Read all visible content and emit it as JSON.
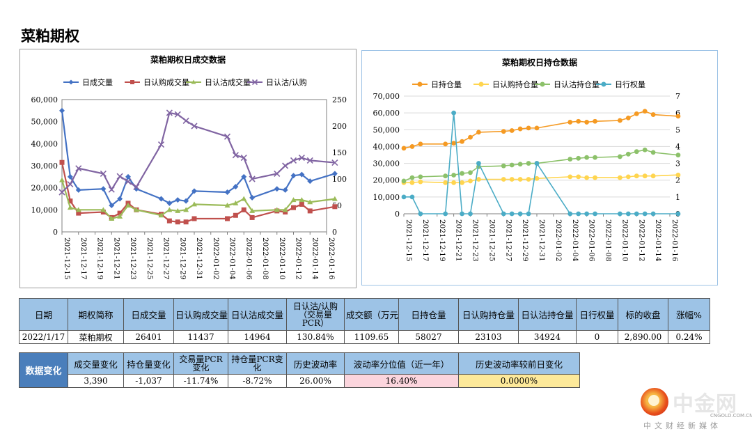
{
  "page": {
    "title": "菜粕期权"
  },
  "chart_data": [
    {
      "type": "line",
      "title": "菜粕期权日成交数据",
      "x": [
        "2021-12-15",
        "2021-12-16",
        "2021-12-17",
        "2021-12-20",
        "2021-12-21",
        "2021-12-22",
        "2021-12-23",
        "2021-12-24",
        "2021-12-27",
        "2021-12-28",
        "2021-12-29",
        "2021-12-30",
        "2021-12-31",
        "2022-01-04",
        "2022-01-05",
        "2022-01-06",
        "2022-01-07",
        "2022-01-10",
        "2022-01-11",
        "2022-01-12",
        "2022-01-13",
        "2022-01-14",
        "2022-01-17"
      ],
      "x_ticks": [
        "2021-12-15",
        "2021-12-17",
        "2021-12-19",
        "2021-12-21",
        "2021-12-23",
        "2021-12-25",
        "2021-12-27",
        "2021-12-29",
        "2021-12-31",
        "2022-01-02",
        "2022-01-04",
        "2022-01-06",
        "2022-01-08",
        "2022-01-10",
        "2022-01-12",
        "2022-01-14",
        "2022-01-16"
      ],
      "y_left": {
        "range": [
          0,
          60000
        ],
        "ticks": [
          "0",
          "10,000",
          "20,000",
          "30,000",
          "40,000",
          "50,000",
          "60,000"
        ]
      },
      "y_right": {
        "range": [
          0,
          250
        ],
        "ticks": [
          "0",
          "50",
          "100",
          "150",
          "200",
          "250"
        ]
      },
      "legend_position": "top",
      "series": [
        {
          "name": "日成交量",
          "axis": "left",
          "color": "#4472c4",
          "marker": "diamond",
          "values": [
            55000,
            25000,
            19000,
            19500,
            12000,
            15000,
            25000,
            19500,
            15000,
            13000,
            14500,
            14000,
            18500,
            18000,
            20500,
            25000,
            15500,
            19500,
            19000,
            25500,
            26000,
            23000,
            26401
          ]
        },
        {
          "name": "日认购成交量",
          "axis": "left",
          "color": "#c0504d",
          "marker": "square",
          "values": [
            31500,
            14000,
            8500,
            9000,
            6500,
            8500,
            13000,
            10000,
            8000,
            5000,
            4500,
            4500,
            6000,
            6000,
            7500,
            10000,
            6500,
            9500,
            9000,
            11000,
            12500,
            9500,
            11437
          ]
        },
        {
          "name": "日认沽成交量",
          "axis": "left",
          "color": "#9bbb59",
          "marker": "triangle",
          "values": [
            23500,
            11000,
            10000,
            10000,
            6000,
            7000,
            12000,
            10000,
            7500,
            10000,
            9500,
            10000,
            12500,
            12000,
            13000,
            15000,
            9500,
            10000,
            10000,
            14500,
            14500,
            13500,
            14964
          ]
        },
        {
          "name": "日认沽/认购",
          "axis": "right",
          "color": "#8064a2",
          "marker": "x",
          "values": [
            75,
            90,
            120,
            110,
            80,
            105,
            95,
            85,
            165,
            225,
            222,
            210,
            200,
            180,
            145,
            140,
            100,
            110,
            125,
            135,
            140,
            135,
            130.84
          ]
        }
      ]
    },
    {
      "type": "line",
      "title": "菜粕期权日持仓数据",
      "x": [
        "2021-12-15",
        "2021-12-16",
        "2021-12-17",
        "2021-12-20",
        "2021-12-21",
        "2021-12-22",
        "2021-12-23",
        "2021-12-24",
        "2021-12-27",
        "2021-12-28",
        "2021-12-29",
        "2021-12-30",
        "2021-12-31",
        "2022-01-04",
        "2022-01-05",
        "2022-01-06",
        "2022-01-07",
        "2022-01-10",
        "2022-01-11",
        "2022-01-12",
        "2022-01-13",
        "2022-01-14",
        "2022-01-17"
      ],
      "x_ticks": [
        "2021-12-15",
        "2021-12-17",
        "2021-12-19",
        "2021-12-21",
        "2021-12-23",
        "2021-12-25",
        "2021-12-27",
        "2021-12-29",
        "2021-12-31",
        "2022-01-02",
        "2022-01-04",
        "2022-01-06",
        "2022-01-08",
        "2022-01-10",
        "2022-01-12",
        "2022-01-14",
        "2022-01-16"
      ],
      "y_left": {
        "range": [
          0,
          70000
        ],
        "ticks": [
          "0",
          "10,000",
          "20,000",
          "30,000",
          "40,000",
          "50,000",
          "60,000",
          "70,000"
        ]
      },
      "y_right": {
        "range": [
          0,
          7
        ],
        "ticks": [
          "0",
          "1",
          "2",
          "3",
          "4",
          "5",
          "6",
          "7"
        ]
      },
      "legend_position": "top",
      "series": [
        {
          "name": "日持仓量",
          "axis": "left",
          "color": "#f59a23",
          "marker": "circle",
          "values": [
            39000,
            40000,
            41500,
            41500,
            42000,
            43000,
            45500,
            48500,
            49000,
            49500,
            50500,
            51000,
            51000,
            54500,
            55000,
            54500,
            55000,
            55500,
            57000,
            59500,
            61000,
            59000,
            58027
          ]
        },
        {
          "name": "日认购持仓量",
          "axis": "left",
          "color": "#ffd54f",
          "marker": "circle",
          "values": [
            18500,
            18500,
            19000,
            18500,
            18500,
            18500,
            19500,
            20500,
            20500,
            20500,
            20500,
            20500,
            21000,
            22000,
            22000,
            21500,
            21500,
            21500,
            22000,
            22500,
            22500,
            22500,
            23103
          ]
        },
        {
          "name": "日认沽持仓量",
          "axis": "left",
          "color": "#8cc16a",
          "marker": "circle",
          "values": [
            19500,
            21500,
            22000,
            22500,
            23000,
            24000,
            24500,
            28000,
            28500,
            29000,
            29500,
            30000,
            30000,
            32500,
            33000,
            33500,
            33500,
            34000,
            35500,
            37000,
            38000,
            36500,
            34924
          ]
        },
        {
          "name": "日行权量",
          "axis": "right",
          "color": "#4bacc6",
          "marker": "circle",
          "values": [
            1,
            1,
            0,
            0,
            6,
            0,
            0,
            3,
            0,
            0,
            0,
            0,
            3,
            0,
            0,
            0,
            0,
            0,
            0,
            0,
            0,
            0,
            0
          ]
        }
      ]
    }
  ],
  "table1": {
    "headers": [
      "日期",
      "期权简称",
      "日成交量",
      "日认购成交量",
      "日认沽成交量",
      "日认沽/认购（交易量PCR）",
      "成交额（万元）",
      "日持仓量",
      "日认购持仓量",
      "日认沽持仓量",
      "日行权量",
      "标的收盘",
      "涨幅%"
    ],
    "row": [
      "2022/1/17",
      "菜粕期权",
      "26401",
      "11437",
      "14964",
      "130.84%",
      "1109.65",
      "58027",
      "23103",
      "34924",
      "0",
      "2,890.00",
      "0.24%"
    ]
  },
  "table2": {
    "label": "数据变化",
    "headers": [
      "成交量变化",
      "持仓量变化",
      "交易量PCR变化",
      "持仓量PCR变化",
      "历史波动率",
      "波动率分位值（近一年）",
      "历史波动率较前日变化"
    ],
    "row": [
      "3,390",
      "-1,037",
      "-11.74%",
      "-8.72%",
      "26.00%",
      "16.40%",
      "0.0000%"
    ]
  },
  "logo": {
    "name": "中金网",
    "domain": "CNGOLD.COM.CN",
    "slogan": "中文财经新媒体"
  }
}
